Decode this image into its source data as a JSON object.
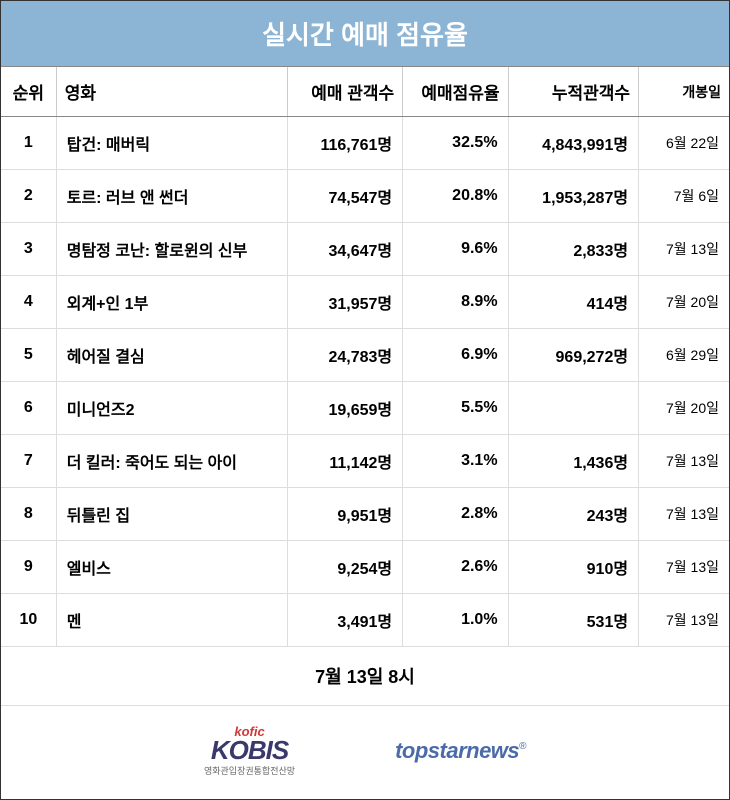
{
  "title": "실시간 예매 점유율",
  "columns": {
    "rank": "순위",
    "movie": "영화",
    "presale": "예매 관객수",
    "share": "예매점유율",
    "cumulative": "누적관객수",
    "release": "개봉일"
  },
  "rows": [
    {
      "rank": "1",
      "movie": "탑건: 매버릭",
      "presale": "116,761명",
      "share": "32.5%",
      "cumulative": "4,843,991명",
      "release": "6월 22일"
    },
    {
      "rank": "2",
      "movie": "토르: 러브 앤 썬더",
      "presale": "74,547명",
      "share": "20.8%",
      "cumulative": "1,953,287명",
      "release": "7월 6일"
    },
    {
      "rank": "3",
      "movie": "명탐정 코난: 할로윈의 신부",
      "presale": "34,647명",
      "share": "9.6%",
      "cumulative": "2,833명",
      "release": "7월 13일"
    },
    {
      "rank": "4",
      "movie": "외계+인 1부",
      "presale": "31,957명",
      "share": "8.9%",
      "cumulative": "414명",
      "release": "7월 20일"
    },
    {
      "rank": "5",
      "movie": "헤어질 결심",
      "presale": "24,783명",
      "share": "6.9%",
      "cumulative": "969,272명",
      "release": "6월 29일"
    },
    {
      "rank": "6",
      "movie": "미니언즈2",
      "presale": "19,659명",
      "share": "5.5%",
      "cumulative": "",
      "release": "7월 20일"
    },
    {
      "rank": "7",
      "movie": "더 킬러: 죽어도 되는 아이",
      "presale": "11,142명",
      "share": "3.1%",
      "cumulative": "1,436명",
      "release": "7월 13일"
    },
    {
      "rank": "8",
      "movie": "뒤틀린 집",
      "presale": "9,951명",
      "share": "2.8%",
      "cumulative": "243명",
      "release": "7월 13일"
    },
    {
      "rank": "9",
      "movie": "엘비스",
      "presale": "9,254명",
      "share": "2.6%",
      "cumulative": "910명",
      "release": "7월 13일"
    },
    {
      "rank": "10",
      "movie": "멘",
      "presale": "3,491명",
      "share": "1.0%",
      "cumulative": "531명",
      "release": "7월 13일"
    }
  ],
  "timestamp": "7월 13일 8시",
  "logos": {
    "kobis_kofic": "kofic",
    "kobis_main": "KOBIS",
    "kobis_sub": "영화관입장권통합전산망",
    "topstar": "topstarnews"
  },
  "styles": {
    "title_bg": "#8cb4d4",
    "title_color": "#ffffff",
    "border_color": "#333333",
    "header_border": "#888888",
    "cell_border": "#dddddd",
    "title_fontsize": 26,
    "header_fontsize": 17,
    "cell_fontsize": 16,
    "release_fontsize": 14,
    "col_widths": {
      "rank": 55,
      "movie": 230,
      "presale": 115,
      "share": 105,
      "cumulative": 130,
      "release": 90
    }
  }
}
